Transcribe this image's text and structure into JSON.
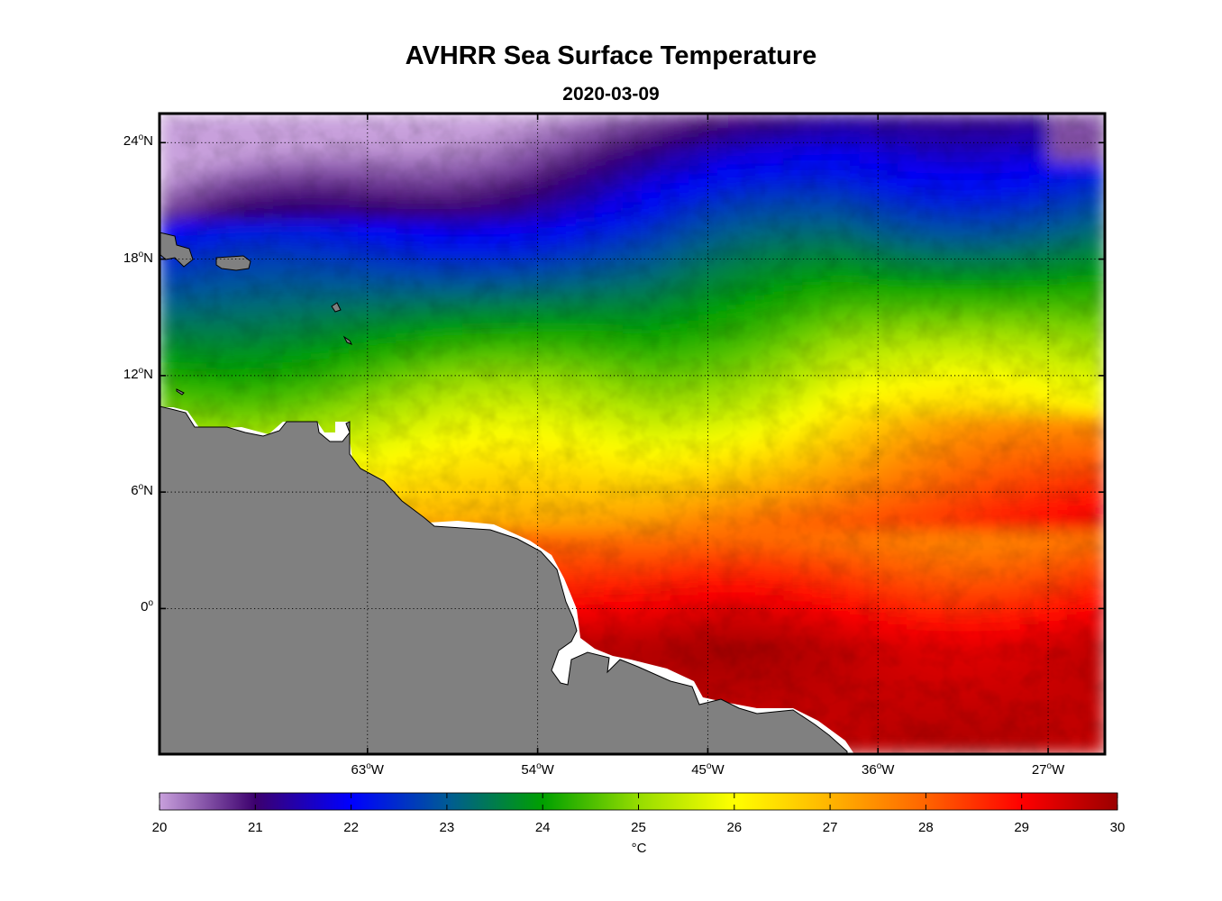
{
  "header": {
    "title": "AVHRR Sea Surface Temperature",
    "date": "2020-03-09"
  },
  "map": {
    "projection": "equidistant cylindrical",
    "lon_range_deg": [
      -74,
      -24
    ],
    "lat_range_deg": [
      -7.5,
      25.5
    ],
    "gridlines": "dotted",
    "land_color": "#808080",
    "coastline_color": "#000000",
    "lat_ticks": [
      {
        "value": 24,
        "text": "24",
        "suffix": "N"
      },
      {
        "value": 18,
        "text": "18",
        "suffix": "N"
      },
      {
        "value": 12,
        "text": "12",
        "suffix": "N"
      },
      {
        "value": 6,
        "text": "6",
        "suffix": "N"
      },
      {
        "value": 0,
        "text": "0",
        "suffix": ""
      }
    ],
    "lon_ticks": [
      {
        "value": -63,
        "text": "63",
        "suffix": "W"
      },
      {
        "value": -54,
        "text": "54",
        "suffix": "W"
      },
      {
        "value": -45,
        "text": "45",
        "suffix": "W"
      },
      {
        "value": -36,
        "text": "36",
        "suffix": "W"
      },
      {
        "value": -27,
        "text": "27",
        "suffix": "W"
      }
    ],
    "degree_symbol": "o"
  },
  "colorbar": {
    "min": 20,
    "max": 30,
    "unit": "°C",
    "tick_labels": [
      "20",
      "21",
      "22",
      "23",
      "24",
      "25",
      "26",
      "27",
      "28",
      "29",
      "30"
    ],
    "colormap_stops": [
      {
        "v": 20.0,
        "color": "#c8a0dc"
      },
      {
        "v": 21.0,
        "color": "#3c006e"
      },
      {
        "v": 22.0,
        "color": "#0000ff"
      },
      {
        "v": 23.0,
        "color": "#005a96"
      },
      {
        "v": 24.0,
        "color": "#00a000"
      },
      {
        "v": 25.0,
        "color": "#96dc00"
      },
      {
        "v": 26.0,
        "color": "#ffff00"
      },
      {
        "v": 27.0,
        "color": "#ffb400"
      },
      {
        "v": 28.0,
        "color": "#ff6400"
      },
      {
        "v": 29.0,
        "color": "#ff0000"
      },
      {
        "v": 30.0,
        "color": "#9a0000"
      }
    ]
  }
}
